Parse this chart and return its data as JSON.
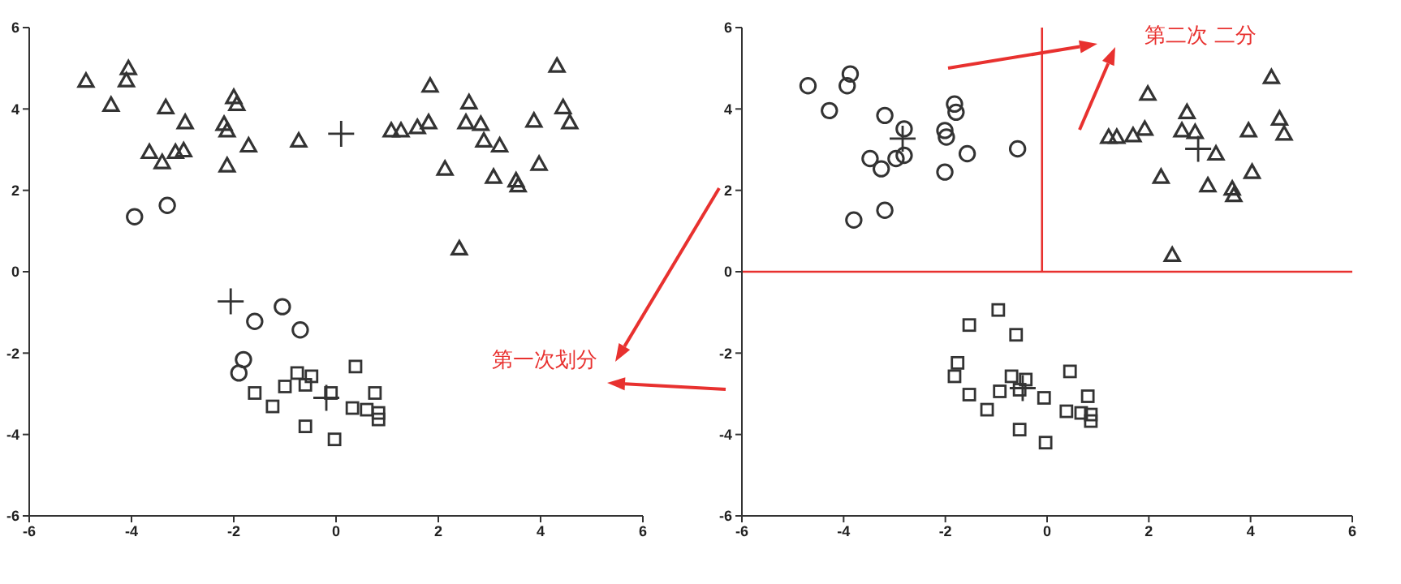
{
  "chart_data": [
    {
      "type": "scatter",
      "xlim": [
        -6,
        6
      ],
      "ylim": [
        -6,
        6
      ],
      "xticks": [
        -6,
        -4,
        -2,
        0,
        2,
        4,
        6
      ],
      "yticks": [
        -6,
        -4,
        -2,
        0,
        2,
        4,
        6
      ],
      "grid": false,
      "legend": false,
      "annotations": [
        "第一次划分"
      ],
      "series": [
        {
          "marker": "triangle",
          "color": "#333333",
          "x": [
            -4.89,
            -4.06,
            -4.1,
            -4.4,
            -3.33,
            -2.95,
            -3.65,
            -3.4,
            -3.14,
            -2.98,
            -2.19,
            -2.13,
            -2.13,
            -2.0,
            -1.94,
            -1.71,
            -0.73,
            1.08,
            1.27,
            1.59,
            1.81,
            1.84,
            2.13,
            2.41,
            2.54,
            2.6,
            2.83,
            2.89,
            3.2,
            3.08,
            3.52,
            3.56,
            3.87,
            3.97,
            4.32,
            4.44,
            4.57
          ],
          "values": [
            4.69,
            5.0,
            4.7,
            4.1,
            4.04,
            3.67,
            2.94,
            2.69,
            2.94,
            2.98,
            3.63,
            3.47,
            2.61,
            4.29,
            4.12,
            3.1,
            3.22,
            3.47,
            3.47,
            3.55,
            3.67,
            4.57,
            2.53,
            0.57,
            3.67,
            4.16,
            3.63,
            3.22,
            3.1,
            2.33,
            2.24,
            2.12,
            3.71,
            2.65,
            5.06,
            4.04,
            3.67
          ]
        },
        {
          "marker": "circle",
          "color": "#333333",
          "x": [
            -3.94,
            -3.3,
            -1.05,
            -1.59,
            -0.7,
            -1.81,
            -1.9
          ],
          "values": [
            1.35,
            1.63,
            -0.86,
            -1.22,
            -1.43,
            -2.16,
            -2.49
          ]
        },
        {
          "marker": "square",
          "color": "#333333",
          "x": [
            -1.59,
            -1.24,
            -1.0,
            -0.76,
            -0.6,
            -0.48,
            -0.1,
            0.38,
            -0.6,
            -0.03,
            0.32,
            0.6,
            0.76,
            0.83,
            0.83
          ],
          "values": [
            -2.98,
            -3.31,
            -2.82,
            -2.49,
            -2.78,
            -2.57,
            -2.98,
            -2.33,
            -3.8,
            -4.12,
            -3.35,
            -3.39,
            -2.98,
            -3.47,
            -3.63
          ]
        },
        {
          "marker": "cross",
          "color": "#333333",
          "x": [
            0.1,
            -2.06,
            -0.19
          ],
          "values": [
            3.39,
            -0.73,
            -3.1
          ]
        }
      ]
    },
    {
      "type": "scatter",
      "xlim": [
        -6,
        6
      ],
      "ylim": [
        -6,
        6
      ],
      "xticks": [
        -6,
        -4,
        -2,
        0,
        2,
        4,
        6
      ],
      "yticks": [
        -6,
        -4,
        -2,
        0,
        2,
        4,
        6
      ],
      "grid": false,
      "legend": false,
      "annotations": [
        "第二次 二分"
      ],
      "ref_lines": [
        {
          "axis": "y",
          "value": 0,
          "color": "#e8312f"
        },
        {
          "axis": "x",
          "value": -0.1,
          "color": "#e8312f"
        }
      ],
      "series": [
        {
          "marker": "circle",
          "color": "#333333",
          "x": [
            -4.7,
            -3.87,
            -3.93,
            -4.28,
            -3.19,
            -2.81,
            -3.48,
            -3.26,
            -2.97,
            -2.81,
            -2.01,
            -1.98,
            -2.01,
            -1.82,
            -1.79,
            -1.57,
            -0.58,
            -3.8,
            -3.19
          ],
          "values": [
            4.57,
            4.86,
            4.57,
            3.96,
            3.84,
            3.51,
            2.78,
            2.53,
            2.78,
            2.86,
            3.47,
            3.31,
            2.45,
            4.12,
            3.92,
            2.9,
            3.02,
            1.27,
            1.51
          ]
        },
        {
          "marker": "triangle",
          "color": "#333333",
          "x": [
            1.21,
            1.37,
            1.69,
            1.92,
            1.98,
            2.24,
            2.46,
            2.65,
            2.75,
            2.91,
            3.32,
            3.16,
            3.64,
            3.67,
            3.96,
            4.03,
            4.41,
            4.57,
            4.66
          ],
          "values": [
            3.31,
            3.31,
            3.35,
            3.51,
            4.37,
            2.33,
            0.41,
            3.47,
            3.92,
            3.43,
            2.9,
            2.12,
            2.04,
            1.88,
            3.47,
            2.45,
            4.78,
            3.76,
            3.39
          ]
        },
        {
          "marker": "square",
          "color": "#333333",
          "x": [
            -0.96,
            -1.53,
            -0.61,
            -1.76,
            -1.82,
            -1.53,
            -1.18,
            -0.93,
            -0.7,
            -0.54,
            -0.42,
            -0.06,
            0.45,
            -0.54,
            -0.03,
            0.38,
            0.67,
            0.8,
            0.86,
            0.86
          ],
          "values": [
            -0.94,
            -1.31,
            -1.55,
            -2.24,
            -2.57,
            -3.02,
            -3.39,
            -2.94,
            -2.57,
            -2.9,
            -2.65,
            -3.1,
            -2.45,
            -3.88,
            -4.2,
            -3.43,
            -3.47,
            -3.06,
            -3.51,
            -3.67
          ]
        },
        {
          "marker": "cross",
          "color": "#333333",
          "x": [
            -2.84,
            2.97,
            -0.48
          ],
          "values": [
            3.27,
            3.02,
            -2.86
          ]
        }
      ]
    }
  ]
}
